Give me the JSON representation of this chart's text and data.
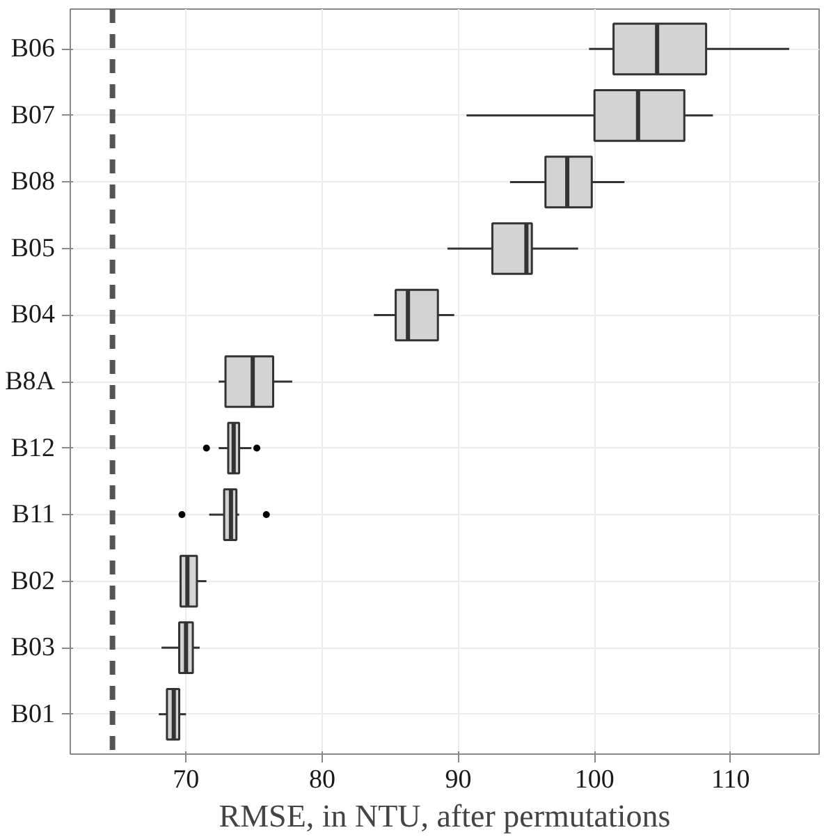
{
  "chart_data": {
    "type": "box",
    "orientation": "horizontal",
    "xlabel": "RMSE, in NTU, after permutations",
    "categories": [
      "B06",
      "B07",
      "B08",
      "B05",
      "B04",
      "B8A",
      "B12",
      "B11",
      "B02",
      "B03",
      "B01"
    ],
    "boxes": [
      {
        "low": 99.6,
        "q1": 101.4,
        "median": 104.6,
        "q3": 108.2,
        "high": 114.3
      },
      {
        "low": 90.6,
        "q1": 100.0,
        "median": 103.2,
        "q3": 106.6,
        "high": 108.7
      },
      {
        "low": 93.8,
        "q1": 96.4,
        "median": 98.0,
        "q3": 99.8,
        "high": 102.2
      },
      {
        "low": 89.2,
        "q1": 92.5,
        "median": 95.0,
        "q3": 95.4,
        "high": 98.8
      },
      {
        "low": 83.8,
        "q1": 85.4,
        "median": 86.3,
        "q3": 88.5,
        "high": 89.7
      },
      {
        "low": 72.4,
        "q1": 72.9,
        "median": 74.9,
        "q3": 76.4,
        "high": 77.8
      },
      {
        "low": 72.4,
        "q1": 73.1,
        "median": 73.5,
        "q3": 73.9,
        "high": 74.8,
        "outliers": [
          71.5,
          75.2
        ]
      },
      {
        "low": 71.7,
        "q1": 72.8,
        "median": 73.3,
        "q3": 73.7,
        "high": 73.9,
        "outliers": [
          69.7,
          75.9
        ]
      },
      {
        "low": 69.6,
        "q1": 69.6,
        "median": 70.1,
        "q3": 70.8,
        "high": 71.5
      },
      {
        "low": 68.2,
        "q1": 69.5,
        "median": 70.0,
        "q3": 70.5,
        "high": 71.0
      },
      {
        "low": 68.0,
        "q1": 68.6,
        "median": 69.1,
        "q3": 69.5,
        "high": 70.0
      }
    ],
    "color": "#d3d3d3",
    "xlim": [
      61.5,
      116.5
    ],
    "xticks": [
      70,
      80,
      90,
      100,
      110
    ],
    "ref_lines": [
      {
        "axis": "x",
        "value": 64.6,
        "color": "#555555",
        "line_style": "dashed"
      }
    ],
    "grid": true
  }
}
